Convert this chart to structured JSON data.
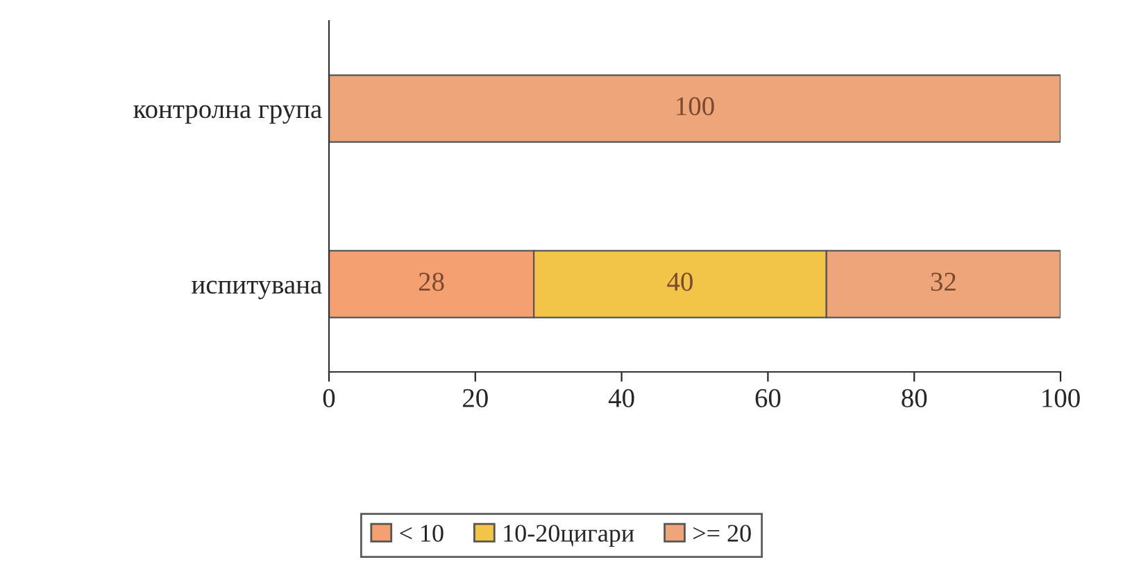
{
  "chart_data": {
    "type": "bar",
    "orientation": "horizontal",
    "stacked": true,
    "categories": [
      "контролна група",
      "испитувана"
    ],
    "series": [
      {
        "name": "< 10",
        "color": "#f4a070",
        "values": [
          0,
          28
        ],
        "value_labels": [
          null,
          "28"
        ]
      },
      {
        "name": "10-20цигари",
        "color": "#f2c448",
        "values": [
          0,
          40
        ],
        "value_labels": [
          null,
          "40"
        ]
      },
      {
        "name": ">= 20",
        "color": "#eea57a",
        "values": [
          100,
          32
        ],
        "value_labels": [
          "100",
          "32"
        ]
      }
    ],
    "xlim": [
      0,
      100
    ],
    "xticks": [
      0,
      20,
      40,
      60,
      80,
      100
    ],
    "grid": false,
    "legend": "bottom"
  }
}
